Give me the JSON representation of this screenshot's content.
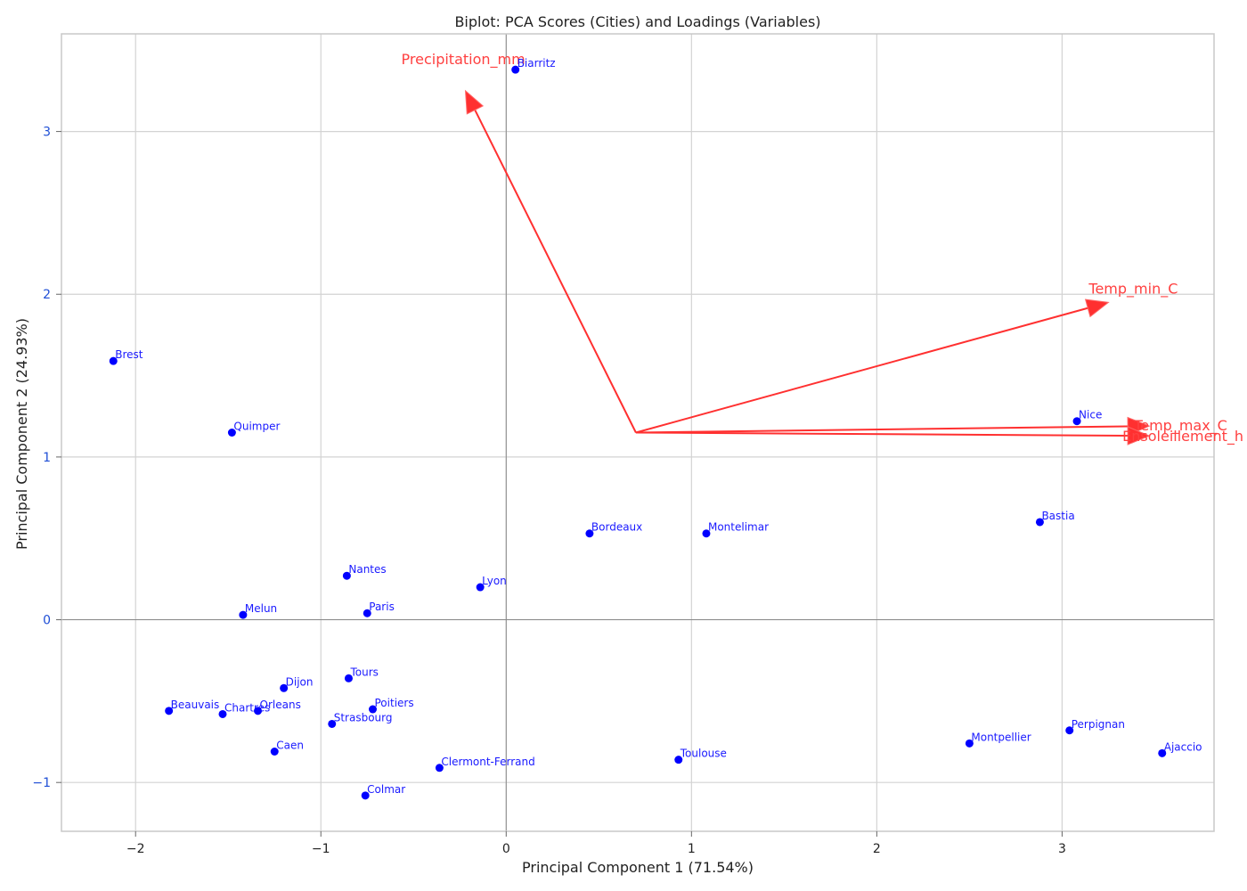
{
  "chart_data": {
    "type": "scatter",
    "title": "Biplot: PCA Scores (Cities) and Loadings (Variables)",
    "xlabel": "Principal Component 1 (71.54%)",
    "ylabel": "Principal Component 2 (24.93%)",
    "xlim": [
      -2.4,
      3.82
    ],
    "ylim": [
      -1.3,
      3.6
    ],
    "x_ticks": [
      -2,
      -1,
      0,
      1,
      2,
      3
    ],
    "y_ticks": [
      -1,
      0,
      1,
      2,
      3
    ],
    "x_tick_labels": [
      "−2",
      "−1",
      "0",
      "1",
      "2",
      "3"
    ],
    "y_tick_labels": [
      "−1",
      "0",
      "1",
      "2",
      "3"
    ],
    "grid": true,
    "zero_lines": true,
    "colors": {
      "points": "#0000ff",
      "point_labels": "#1a1aff",
      "loadings": "#ff3030",
      "loading_labels": "#ff4040",
      "grid": "#d3d3d3",
      "zero_line": "#888888",
      "axes": "#c8c8c8",
      "ylabel": "#1f4fd6"
    },
    "points": [
      {
        "name": "Brest",
        "x": -2.12,
        "y": 1.59
      },
      {
        "name": "Quimper",
        "x": -1.48,
        "y": 1.15
      },
      {
        "name": "Melun",
        "x": -1.42,
        "y": 0.03
      },
      {
        "name": "Beauvais",
        "x": -1.82,
        "y": -0.56
      },
      {
        "name": "Chartres",
        "x": -1.53,
        "y": -0.58
      },
      {
        "name": "Orleans",
        "x": -1.34,
        "y": -0.56
      },
      {
        "name": "Dijon",
        "x": -1.2,
        "y": -0.42
      },
      {
        "name": "Caen",
        "x": -1.25,
        "y": -0.81
      },
      {
        "name": "Nantes",
        "x": -0.86,
        "y": 0.27
      },
      {
        "name": "Paris",
        "x": -0.75,
        "y": 0.04
      },
      {
        "name": "Tours",
        "x": -0.85,
        "y": -0.36
      },
      {
        "name": "Poitiers",
        "x": -0.72,
        "y": -0.55
      },
      {
        "name": "Strasbourg",
        "x": -0.94,
        "y": -0.64
      },
      {
        "name": "Colmar",
        "x": -0.76,
        "y": -1.08
      },
      {
        "name": "Clermont-Ferrand",
        "x": -0.36,
        "y": -0.91
      },
      {
        "name": "Lyon",
        "x": -0.14,
        "y": 0.2
      },
      {
        "name": "Biarritz",
        "x": 0.05,
        "y": 3.38
      },
      {
        "name": "Bordeaux",
        "x": 0.45,
        "y": 0.53
      },
      {
        "name": "Montelimar",
        "x": 1.08,
        "y": 0.53
      },
      {
        "name": "Toulouse",
        "x": 0.93,
        "y": -0.86
      },
      {
        "name": "Montpellier",
        "x": 2.5,
        "y": -0.76
      },
      {
        "name": "Bastia",
        "x": 2.88,
        "y": 0.6
      },
      {
        "name": "Nice",
        "x": 3.08,
        "y": 1.22
      },
      {
        "name": "Perpignan",
        "x": 3.04,
        "y": -0.68
      },
      {
        "name": "Ajaccio",
        "x": 3.54,
        "y": -0.82
      }
    ],
    "loadings_origin": {
      "x": 0.7,
      "y": 1.15
    },
    "loadings": [
      {
        "name": "Precipitation_mm",
        "x": -0.22,
        "y": 3.25
      },
      {
        "name": "Temp_min_C",
        "x": 3.25,
        "y": 1.95
      },
      {
        "name": "Temp_max_C",
        "x": 3.47,
        "y": 1.19
      },
      {
        "name": "Ensoleillement_h",
        "x": 3.47,
        "y": 1.13
      }
    ]
  }
}
